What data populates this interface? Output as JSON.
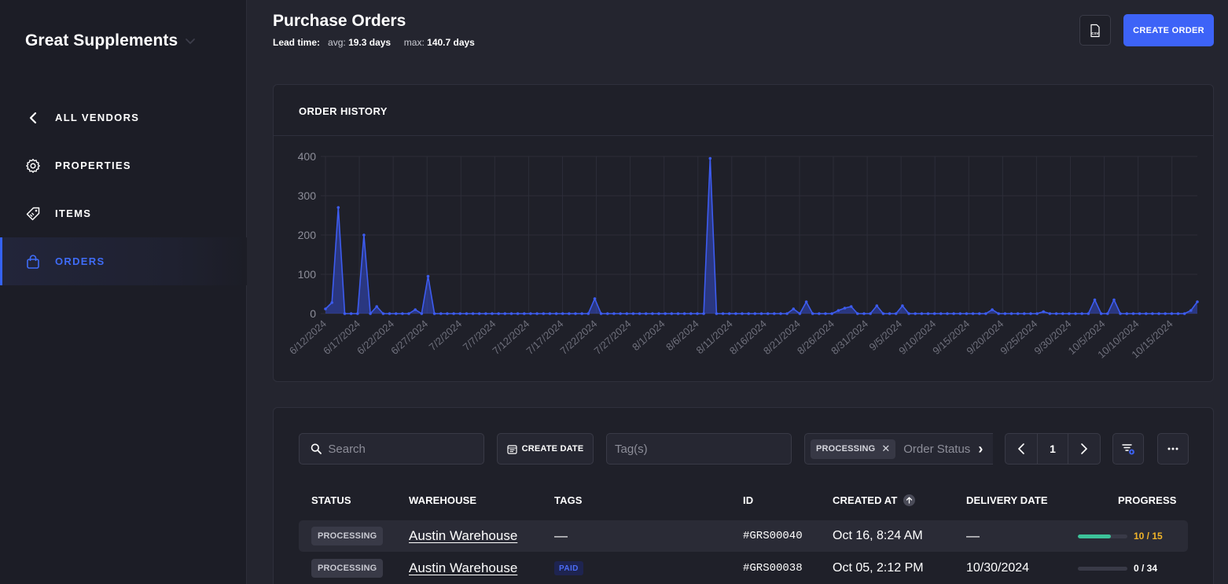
{
  "sidebar": {
    "brand": "Great Supplements",
    "items": [
      {
        "label": "ALL VENDORS",
        "icon": "chevron-left-icon"
      },
      {
        "label": "PROPERTIES",
        "icon": "gear-icon"
      },
      {
        "label": "ITEMS",
        "icon": "tag-icon"
      },
      {
        "label": "ORDERS",
        "icon": "bag-icon",
        "active": true
      }
    ]
  },
  "header": {
    "title": "Purchase Orders",
    "lead_label": "Lead time:",
    "avg_label": "avg:",
    "avg_value": "19.3 days",
    "max_label": "max:",
    "max_value": "140.7 days",
    "csv_label": "CSV",
    "create_label": "CREATE ORDER"
  },
  "chart_card": {
    "title": "ORDER HISTORY"
  },
  "chart_data": {
    "type": "area",
    "title": "ORDER HISTORY",
    "xlabel": "",
    "ylabel": "",
    "ylim": [
      0,
      400
    ],
    "yticks": [
      0,
      100,
      200,
      300,
      400
    ],
    "grid": true,
    "color": "#3d5cf0",
    "x_start": "6/12/2024",
    "x_end": "10/17/2024",
    "xtick_labels": [
      "6/12/2024",
      "6/17/2024",
      "6/22/2024",
      "6/27/2024",
      "7/2/2024",
      "7/7/2024",
      "7/12/2024",
      "7/17/2024",
      "7/22/2024",
      "7/27/2024",
      "8/1/2024",
      "8/6/2024",
      "8/11/2024",
      "8/16/2024",
      "8/21/2024",
      "8/26/2024",
      "8/31/2024",
      "9/5/2024",
      "9/10/2024",
      "9/15/2024",
      "9/20/2024",
      "9/25/2024",
      "9/30/2024",
      "10/5/2024",
      "10/10/2024",
      "10/15/2024"
    ],
    "values": [
      12,
      28,
      270,
      0,
      0,
      0,
      200,
      0,
      18,
      0,
      0,
      0,
      0,
      0,
      10,
      0,
      95,
      0,
      0,
      0,
      0,
      0,
      0,
      0,
      0,
      0,
      0,
      0,
      0,
      0,
      0,
      0,
      0,
      0,
      0,
      0,
      0,
      0,
      0,
      0,
      0,
      0,
      38,
      0,
      0,
      0,
      0,
      0,
      0,
      0,
      0,
      0,
      0,
      0,
      0,
      0,
      0,
      0,
      0,
      0,
      395,
      0,
      0,
      0,
      0,
      0,
      0,
      0,
      0,
      0,
      0,
      0,
      0,
      12,
      0,
      30,
      0,
      0,
      0,
      0,
      8,
      14,
      18,
      0,
      0,
      0,
      20,
      0,
      0,
      0,
      20,
      0,
      0,
      0,
      0,
      0,
      0,
      0,
      0,
      0,
      0,
      0,
      0,
      0,
      10,
      0,
      0,
      0,
      0,
      0,
      0,
      0,
      5,
      0,
      0,
      0,
      0,
      0,
      0,
      0,
      35,
      0,
      0,
      35,
      0,
      0,
      0,
      0,
      0,
      0,
      0,
      0,
      0,
      0,
      0,
      8,
      30
    ]
  },
  "filters": {
    "search_placeholder": "Search",
    "date_label": "CREATE DATE",
    "tags_placeholder": "Tag(s)",
    "status_chip": "PROCESSING",
    "status_placeholder": "Order Status",
    "page": "1"
  },
  "table": {
    "headers": {
      "status": "STATUS",
      "warehouse": "WAREHOUSE",
      "tags": "TAGS",
      "id": "ID",
      "created": "CREATED AT",
      "delivery": "DELIVERY DATE",
      "progress": "PROGRESS"
    },
    "rows": [
      {
        "status": "PROCESSING",
        "warehouse": "Austin Warehouse",
        "tags": "—",
        "tag_badge": "",
        "id": "#GRS00040",
        "created": "Oct 16, 8:24 AM",
        "delivery": "—",
        "progress": "10 / 15",
        "fraction": 0.667,
        "progress_color": "#f0b429"
      },
      {
        "status": "PROCESSING",
        "warehouse": "Austin Warehouse",
        "tags": "",
        "tag_badge": "PAID",
        "id": "#GRS00038",
        "created": "Oct 05, 2:12 PM",
        "delivery": "10/30/2024",
        "progress": "0 / 34",
        "fraction": 0,
        "progress_color": "#ffffff"
      }
    ]
  }
}
